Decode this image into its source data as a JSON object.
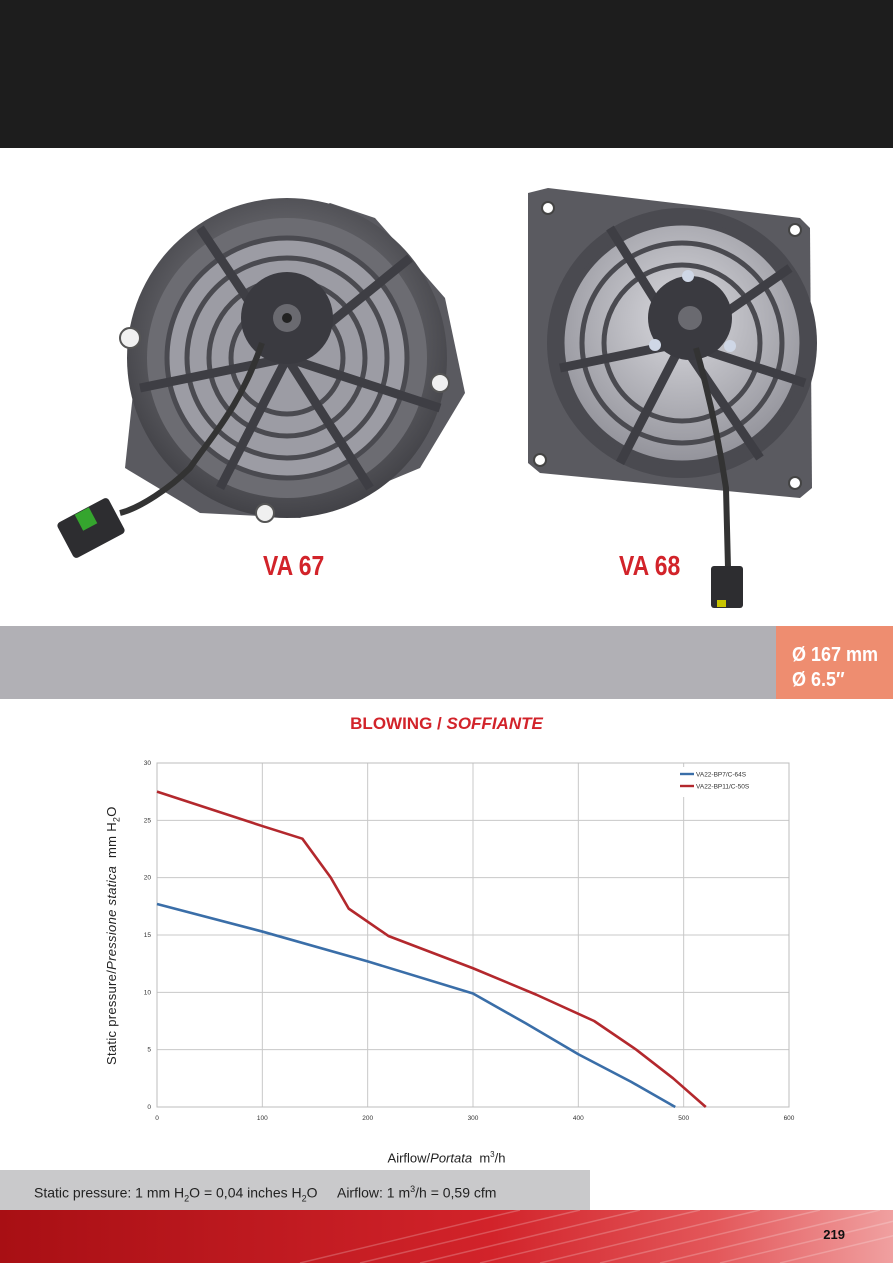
{
  "products": [
    {
      "model": "VA 67"
    },
    {
      "model": "VA 68"
    }
  ],
  "diameter": {
    "mm": "Ø 167 mm",
    "inch": "Ø 6.5″"
  },
  "chart_title": {
    "main": "BLOWING / ",
    "italic": "SOFFIANTE"
  },
  "axes": {
    "ylabel_prefix": "Static pressure/",
    "ylabel_italic": "Pressione statica",
    "ylabel_unit": "mm  H",
    "ylabel_sub": "2",
    "ylabel_end": "O",
    "xlabel_prefix": "Airflow/",
    "xlabel_italic": "Portata",
    "xlabel_unit": "m",
    "xlabel_sup": "3",
    "xlabel_end": "/h"
  },
  "chart_data": {
    "type": "line",
    "xlim": [
      0,
      600
    ],
    "ylim": [
      0,
      30
    ],
    "x_ticks": [
      "0",
      "100",
      "200",
      "300",
      "400",
      "500",
      "600"
    ],
    "y_ticks": [
      "0",
      "5",
      "10",
      "15",
      "20",
      "25",
      "30"
    ],
    "grid": true,
    "legend_position": "top-right",
    "series": [
      {
        "name": "VA22-BP7/C-64S",
        "color": "#3a6ea8",
        "x": [
          0,
          100,
          200,
          300,
          350,
          400,
          450,
          492
        ],
        "y": [
          17.7,
          15.3,
          12.7,
          9.9,
          7.3,
          4.6,
          2.2,
          0
        ]
      },
      {
        "name": "VA22-BP11/C-50S",
        "color": "#b3282d",
        "x": [
          0,
          100,
          138,
          165,
          182,
          220,
          300,
          360,
          415,
          455,
          490,
          521
        ],
        "y": [
          27.5,
          24.5,
          23.4,
          20.0,
          17.3,
          14.9,
          12.1,
          9.8,
          7.5,
          5.0,
          2.5,
          0
        ]
      }
    ]
  },
  "footnote": {
    "sp_label": "Static pressure: 1 mm H",
    "sp_sub1": "2",
    "sp_mid": "O = 0,04 inches H",
    "sp_sub2": "2",
    "sp_end": "O",
    "af_label": "Airflow: 1 m",
    "af_sup": "3",
    "af_end": "/h = 0,59 cfm"
  },
  "page_number": "219"
}
